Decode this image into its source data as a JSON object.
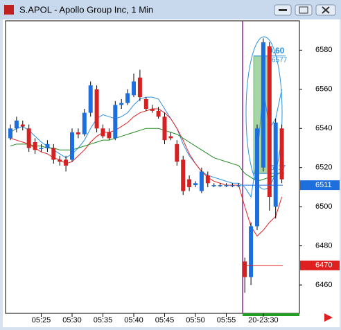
{
  "chart_data": {
    "type": "candlestick",
    "title": "S.APOL - Apollo Group Inc, 1 Min",
    "categories": [
      null,
      null,
      null,
      null,
      null,
      "05:25",
      null,
      null,
      null,
      null,
      "05:30",
      null,
      null,
      null,
      null,
      "05:35",
      null,
      null,
      null,
      null,
      "05:40",
      null,
      null,
      null,
      null,
      "05:45",
      null,
      null,
      null,
      null,
      "05:50",
      null,
      null,
      null,
      null,
      "05:55",
      null,
      null,
      null,
      null,
      null,
      "20-23:30",
      null,
      null,
      null
    ],
    "open": [
      6535,
      6540,
      6542,
      6540,
      6533,
      6530,
      6530,
      6530,
      6524,
      6524,
      6524,
      6538,
      6537,
      6548,
      6560,
      6540,
      6538,
      6535,
      6552,
      6553,
      6557,
      6566,
      6555,
      6550,
      6549,
      6546,
      6536,
      6532,
      6524,
      6514,
      6511,
      6508,
      6516,
      6511,
      6511,
      6511,
      6511,
      6511,
      6472,
      6464,
      6490,
      6520,
      6582,
      6500,
      6540
    ],
    "high": [
      6542,
      6546,
      6544,
      6542,
      6535,
      6532,
      6534,
      6532,
      6526,
      6526,
      6540,
      6540,
      6550,
      6564,
      6562,
      6542,
      6540,
      6554,
      6555,
      6560,
      6568,
      6570,
      6556,
      6552,
      6551,
      6548,
      6538,
      6534,
      6526,
      6516,
      6513,
      6520,
      6518,
      6512,
      6512,
      6512,
      6512,
      6512,
      6474,
      6492,
      6542,
      6586,
      6584,
      6545,
      6542
    ],
    "low": [
      6534,
      6538,
      6539,
      6528,
      6527,
      6528,
      6528,
      6522,
      6521,
      6518,
      6523,
      6535,
      6536,
      6546,
      6538,
      6535,
      6534,
      6534,
      6550,
      6552,
      6556,
      6554,
      6549,
      6548,
      6545,
      6532,
      6534,
      6521,
      6506,
      6508,
      6510,
      6507,
      6510,
      6510,
      6510,
      6510,
      6510,
      6510,
      6456,
      6460,
      6488,
      6518,
      6498,
      6494,
      6512
    ],
    "close": [
      6540,
      6544,
      6541,
      6530,
      6529,
      6530,
      6532,
      6524,
      6523,
      6521,
      6538,
      6537,
      6548,
      6562,
      6540,
      6536,
      6535,
      6552,
      6553,
      6558,
      6564,
      6556,
      6550,
      6549,
      6546,
      6534,
      6535,
      6523,
      6508,
      6510,
      6512,
      6518,
      6512,
      6511,
      6511,
      6511,
      6511,
      6511,
      6464,
      6490,
      6540,
      6584,
      6505,
      6543,
      6514
    ],
    "up_color": "#1c6fdc",
    "down_color": "#d42121",
    "overlays": [
      {
        "color": "#2a8fe0",
        "values": [
          6538,
          6540,
          6541,
          6539,
          6536,
          6533,
          6531,
          6529,
          6527,
          6525,
          6527,
          6530,
          6534,
          6540,
          6545,
          6547,
          6546,
          6545,
          6546,
          6548,
          6552,
          6555,
          6556,
          6556,
          6555,
          6550,
          6545,
          6540,
          6532,
          6526,
          6522,
          6518,
          6516,
          6515,
          6514,
          6513,
          6512,
          6512,
          6510,
          6505,
          6525,
          6560,
          6540,
          6545,
          6560
        ]
      },
      {
        "color": "#e02020",
        "values": [
          6535,
          6534,
          6533,
          6532,
          6530,
          6528,
          6527,
          6525,
          6524,
          6522,
          6523,
          6526,
          6529,
          6533,
          6536,
          6538,
          6538,
          6539,
          6541,
          6543,
          6546,
          6548,
          6549,
          6550,
          6550,
          6548,
          6545,
          6540,
          6534,
          6527,
          6522,
          6518,
          6515,
          6513,
          6512,
          6511,
          6511,
          6511,
          6500,
          6490,
          6485,
          6488,
          6492,
          6495,
          6505
        ]
      },
      {
        "color": "#1e8a1e",
        "values": [
          6531,
          6532,
          6532,
          6532,
          6531,
          6531,
          6530,
          6530,
          6529,
          6529,
          6529,
          6530,
          6531,
          6532,
          6533,
          6534,
          6534,
          6535,
          6536,
          6537,
          6538,
          6539,
          6540,
          6540,
          6540,
          6539,
          6538,
          6537,
          6535,
          6533,
          6531,
          6529,
          6527,
          6525,
          6524,
          6523,
          6522,
          6521,
          6517,
          6515,
          6513,
          6514,
          6515,
          6516,
          6518
        ]
      }
    ],
    "ylim": [
      6445.5,
      6595
    ],
    "yticks": [
      6460,
      6480,
      6500,
      6520,
      6540,
      6560,
      6580
    ],
    "price_lines": [
      {
        "value": 6511,
        "color": "#1c6fdc"
      },
      {
        "value": 6470,
        "color": "#e02020"
      }
    ],
    "range_box": {
      "top": 6577,
      "bottom": 6517,
      "label": "0.60",
      "color": "#2a8fe0"
    }
  }
}
